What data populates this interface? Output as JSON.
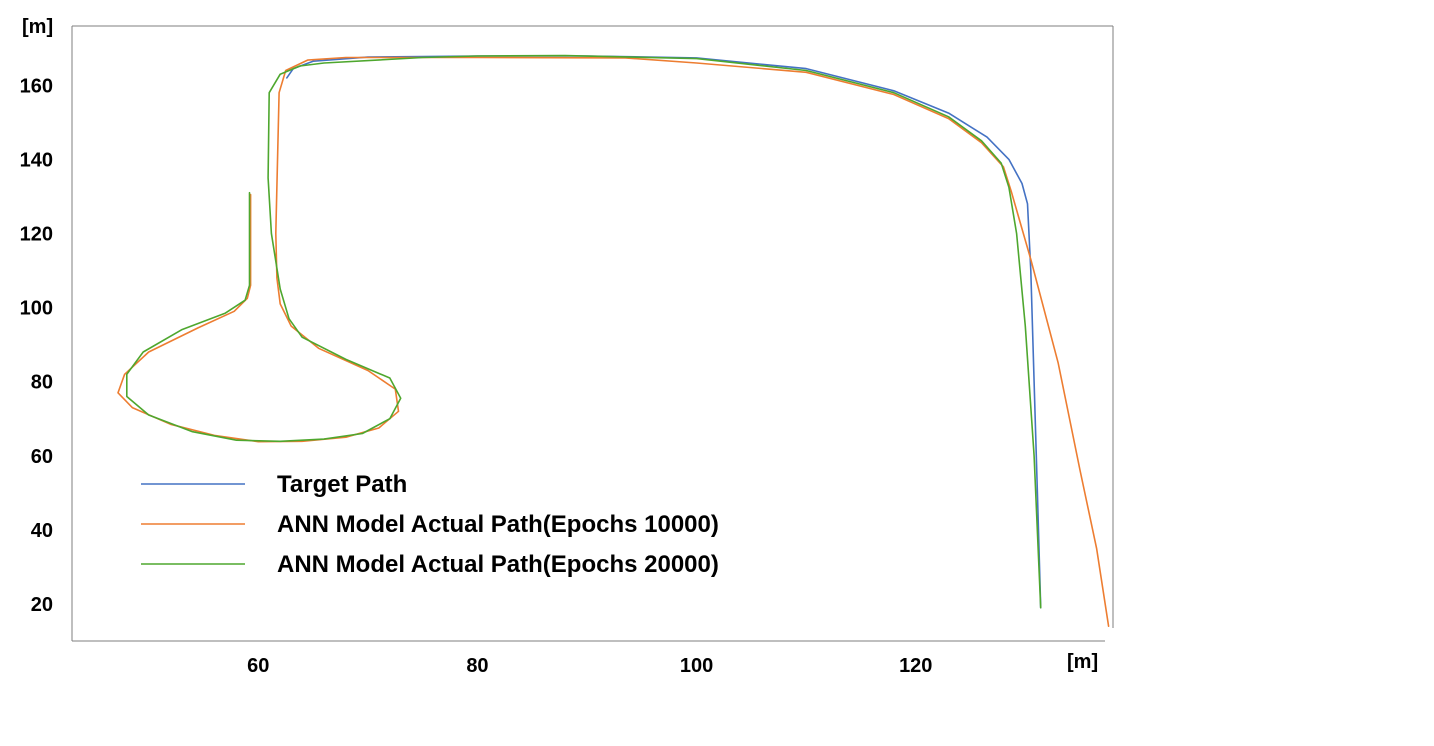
{
  "chart_data": {
    "type": "line",
    "title": "",
    "xlabel": "[m]",
    "ylabel": "[m]",
    "xlim": [
      43,
      138
    ],
    "ylim": [
      10,
      176
    ],
    "x_ticks": [
      "60",
      "80",
      "100",
      "120"
    ],
    "y_ticks": [
      "20",
      "40",
      "60",
      "80",
      "100",
      "120",
      "140",
      "160"
    ],
    "grid": false,
    "legend_position": "lower-left",
    "series": [
      {
        "name": "Target Path",
        "color": "#4472c4",
        "points": [
          [
            62.6,
            162.0
          ],
          [
            63.2,
            164.5
          ],
          [
            65.0,
            166.5
          ],
          [
            70.0,
            167.6
          ],
          [
            80.0,
            167.9
          ],
          [
            90.0,
            167.9
          ],
          [
            100.0,
            167.4
          ],
          [
            110.0,
            164.5
          ],
          [
            118.0,
            158.5
          ],
          [
            123.0,
            152.5
          ],
          [
            126.5,
            146.0
          ],
          [
            128.5,
            140.0
          ],
          [
            129.7,
            133.5
          ],
          [
            130.2,
            128.0
          ],
          [
            130.5,
            110.0
          ],
          [
            130.8,
            80.0
          ],
          [
            131.1,
            50.0
          ],
          [
            131.4,
            19.0
          ]
        ]
      },
      {
        "name": "ANN Model Actual Path(Epochs 10000)",
        "color": "#ed7d31",
        "points": [
          [
            59.3,
            130.5
          ],
          [
            59.3,
            106.0
          ],
          [
            59.0,
            102.5
          ],
          [
            57.8,
            99.0
          ],
          [
            54.5,
            94.5
          ],
          [
            50.0,
            88.0
          ],
          [
            47.8,
            82.0
          ],
          [
            47.2,
            77.0
          ],
          [
            48.5,
            73.0
          ],
          [
            52.0,
            68.5
          ],
          [
            56.0,
            65.5
          ],
          [
            60.0,
            63.8
          ],
          [
            64.0,
            63.9
          ],
          [
            68.0,
            65.0
          ],
          [
            71.0,
            67.5
          ],
          [
            72.8,
            72.0
          ],
          [
            72.5,
            78.0
          ],
          [
            70.0,
            83.0
          ],
          [
            65.5,
            89.0
          ],
          [
            63.0,
            95.0
          ],
          [
            62.0,
            101.0
          ],
          [
            61.7,
            108.0
          ],
          [
            61.6,
            120.0
          ],
          [
            61.9,
            158.0
          ],
          [
            62.5,
            164.0
          ],
          [
            64.5,
            166.8
          ],
          [
            68.0,
            167.5
          ],
          [
            80.0,
            167.5
          ],
          [
            93.5,
            167.4
          ],
          [
            100.0,
            166.0
          ],
          [
            110.0,
            163.5
          ],
          [
            118.0,
            157.5
          ],
          [
            123.0,
            151.0
          ],
          [
            126.0,
            144.5
          ],
          [
            128.0,
            138.0
          ],
          [
            128.7,
            131.5
          ],
          [
            130.5,
            113.0
          ],
          [
            133.0,
            85.0
          ],
          [
            135.0,
            56.0
          ],
          [
            136.5,
            35.0
          ],
          [
            137.6,
            14.0
          ]
        ]
      },
      {
        "name": "ANN Model Actual Path(Epochs 20000)",
        "color": "#4ea72e",
        "points": [
          [
            59.2,
            131.0
          ],
          [
            59.2,
            106.0
          ],
          [
            58.8,
            102.0
          ],
          [
            57.0,
            98.5
          ],
          [
            53.0,
            94.0
          ],
          [
            49.5,
            88.0
          ],
          [
            48.0,
            82.0
          ],
          [
            48.0,
            76.0
          ],
          [
            50.0,
            71.0
          ],
          [
            54.0,
            66.5
          ],
          [
            58.0,
            64.2
          ],
          [
            62.0,
            63.9
          ],
          [
            66.0,
            64.5
          ],
          [
            69.5,
            66.0
          ],
          [
            72.0,
            70.0
          ],
          [
            73.0,
            75.5
          ],
          [
            72.0,
            81.0
          ],
          [
            68.0,
            86.0
          ],
          [
            64.0,
            92.0
          ],
          [
            62.8,
            97.0
          ],
          [
            62.0,
            105.0
          ],
          [
            61.2,
            120.0
          ],
          [
            60.9,
            135.0
          ],
          [
            61.0,
            158.0
          ],
          [
            62.0,
            163.0
          ],
          [
            63.8,
            165.2
          ],
          [
            66.0,
            166.0
          ],
          [
            75.0,
            167.5
          ],
          [
            80.0,
            167.9
          ],
          [
            88.0,
            168.0
          ],
          [
            100.0,
            167.2
          ],
          [
            110.0,
            164.0
          ],
          [
            118.0,
            158.0
          ],
          [
            123.0,
            151.5
          ],
          [
            126.0,
            145.0
          ],
          [
            127.8,
            139.0
          ],
          [
            128.5,
            132.5
          ],
          [
            129.2,
            120.0
          ],
          [
            130.0,
            95.0
          ],
          [
            130.8,
            60.0
          ],
          [
            131.4,
            19.0
          ]
        ]
      }
    ]
  }
}
